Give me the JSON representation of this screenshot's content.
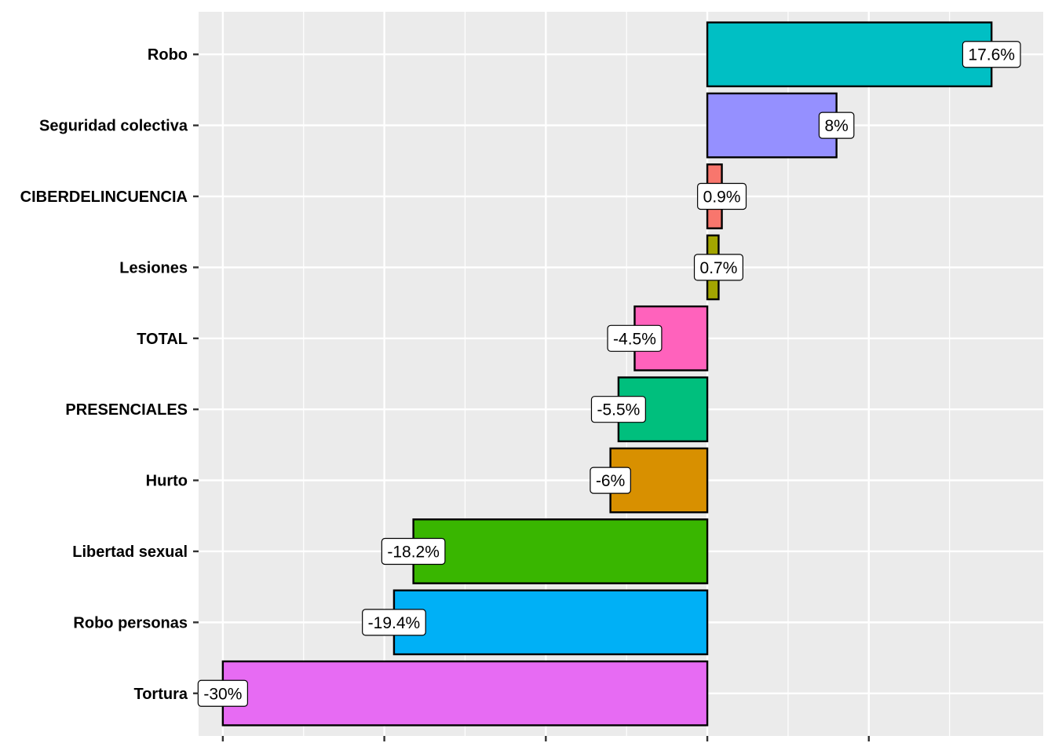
{
  "chart_data": {
    "type": "bar",
    "orientation": "horizontal",
    "title": "",
    "xlabel": "",
    "ylabel": "",
    "xlim": [
      -31.5,
      20.8
    ],
    "x_major_breaks": [
      -30,
      -20,
      -10,
      0,
      10
    ],
    "x_tick_labels_shown": false,
    "grid": true,
    "legend": "none",
    "categories": [
      "Robo",
      "Seguridad colectiva",
      "CIBERDELINCUENCIA",
      "Lesiones",
      "TOTAL",
      "PRESENCIALES",
      "Hurto",
      "Libertad sexual",
      "Robo personas",
      "Tortura"
    ],
    "values": [
      17.6,
      8,
      0.9,
      0.7,
      -4.5,
      -5.5,
      -6,
      -18.2,
      -19.4,
      -30
    ],
    "labels": [
      "17.6%",
      "8%",
      "0.9%",
      "0.7%",
      "-4.5%",
      "-5.5%",
      "-6%",
      "-18.2%",
      "-19.4%",
      "-30%"
    ],
    "colors": [
      "#00BFC4",
      "#9590FF",
      "#F8766D",
      "#A3A500",
      "#FF62BC",
      "#00BF7D",
      "#D89000",
      "#39B600",
      "#00B0F6",
      "#E76BF3"
    ]
  }
}
